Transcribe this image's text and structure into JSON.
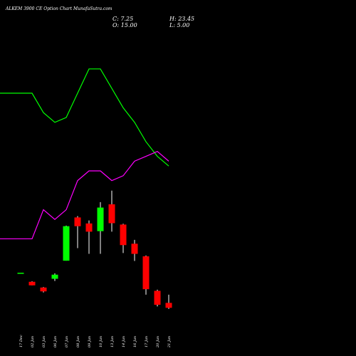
{
  "chart_data": {
    "type": "candlestick",
    "title": "ALKEM 3900  CE Option  Chart MunafaSutra.com",
    "ohlc_readout": {
      "close": "C: 7.25",
      "high": "H: 23.45",
      "open": "O: 15.00",
      "low": "L: 5.00"
    },
    "categories": [
      "17 Dec",
      "02 Jan",
      "03 Jan",
      "06 Jan",
      "07 Jan",
      "08 Jan",
      "09 Jan",
      "10 Jan",
      "13 Jan",
      "14 Jan",
      "16 Jan",
      "17 Jan",
      "20 Jan",
      "21 Jan"
    ],
    "candles": [
      {
        "x": "17 Dec",
        "open": 100.0,
        "high": 100.0,
        "low": 100.0,
        "close": 100.0
      },
      {
        "x": "02 Jan",
        "open": 83.5,
        "high": 84.5,
        "low": 77.0,
        "close": 77.0
      },
      {
        "x": "03 Jan",
        "open": 73.0,
        "high": 74.0,
        "low": 64.0,
        "close": 66.0
      },
      {
        "x": "06 Jan",
        "open": 89.0,
        "high": 99.0,
        "low": 85.0,
        "close": 96.5
      },
      {
        "x": "07 Jan",
        "open": 122.0,
        "high": 186.0,
        "low": 122.0,
        "close": 185.0
      },
      {
        "x": "08 Jan",
        "open": 201.0,
        "high": 203.5,
        "low": 145.0,
        "close": 185.0
      },
      {
        "x": "09 Jan",
        "open": 190.0,
        "high": 195.5,
        "low": 134.5,
        "close": 175.0
      },
      {
        "x": "10 Jan",
        "open": 176.0,
        "high": 229.0,
        "low": 134.5,
        "close": 219.0
      },
      {
        "x": "13 Jan",
        "open": 225.0,
        "high": 250.0,
        "low": 175.0,
        "close": 190.5
      },
      {
        "x": "14 Jan",
        "open": 188.0,
        "high": 189.5,
        "low": 136.0,
        "close": 150.5
      },
      {
        "x": "16 Jan",
        "open": 153.0,
        "high": 160.0,
        "low": 121.5,
        "close": 134.5
      },
      {
        "x": "17 Jan",
        "open": 130.0,
        "high": 131.5,
        "low": 60.0,
        "close": 70.0
      },
      {
        "x": "20 Jan",
        "open": 67.0,
        "high": 69.0,
        "low": 38.5,
        "close": 41.5
      },
      {
        "x": "21 Jan",
        "open": 45.0,
        "high": 60.0,
        "low": 34.0,
        "close": 36.0
      }
    ],
    "series": [
      {
        "color": "#00ff00",
        "values": [
          null,
          300,
          296,
          294,
          295,
          300,
          305,
          305,
          301,
          297,
          294,
          290,
          287,
          285
        ]
      },
      {
        "color": "#ff00ff",
        "values": [
          null,
          270,
          276,
          274,
          276,
          282,
          284,
          284,
          282,
          283,
          286,
          287,
          288,
          286
        ]
      }
    ],
    "colors": {
      "up": "#00ff00",
      "down": "#ff0000",
      "background": "#000000",
      "wick": "#ffffff"
    },
    "ylim": [
      0,
      260
    ],
    "lines_ylim": [
      284,
      306
    ],
    "grid": false
  }
}
